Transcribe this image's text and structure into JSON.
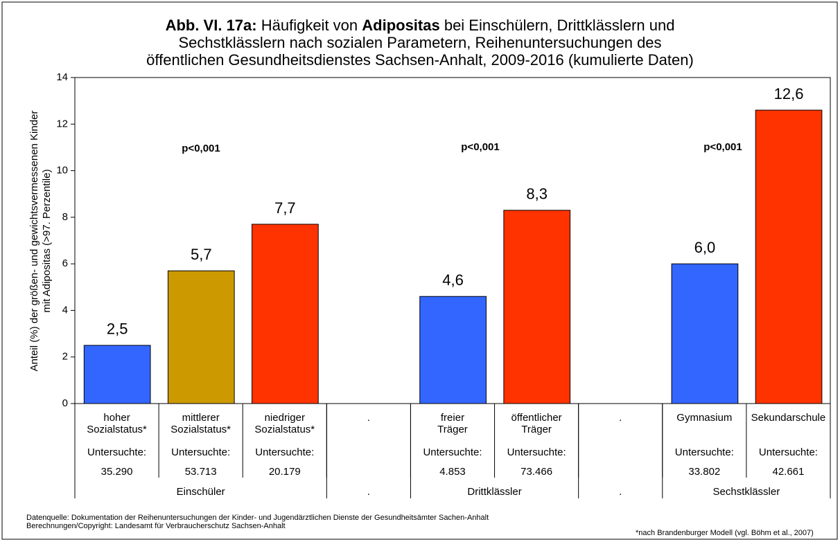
{
  "chart_data": {
    "type": "bar",
    "title": [
      "Abb. VI. 17a:",
      " Häufigkeit von ",
      "Adipositas",
      " bei Einschülern, Drittklässlern und\nSechstklässlern nach sozialen Parametern, Reihenuntersuchungen des\nöffentlichen Gesundheitsdienstes Sachsen-Anhalt, 2009-2016 (kumulierte Daten)"
    ],
    "ylabel": "Anteil (%) der größen- und gewichtsvermessenen Kinder\nmit Adipositas (>97. Perzentile)",
    "categories": [
      "hoher\nSozialstatus*",
      "mittlerer\nSozialstatus*",
      "niedriger\nSozialstatus*",
      ".",
      "freier\nTräger",
      "öffentlicher\nTräger",
      ".",
      "Gymnasium",
      "Sekundarschule"
    ],
    "values": [
      2.5,
      5.7,
      7.7,
      null,
      4.6,
      8.3,
      null,
      6.0,
      12.6
    ],
    "value_labels": [
      "2,5",
      "5,7",
      "7,7",
      null,
      "4,6",
      "8,3",
      null,
      "6,0",
      "12,6"
    ],
    "colors": [
      "#3366ff",
      "#cc9900",
      "#ff3300",
      null,
      "#3366ff",
      "#ff3300",
      null,
      "#3366ff",
      "#ff3300"
    ],
    "sample_label": "Untersuchte:",
    "sample_sizes": [
      "35.290",
      "53.713",
      "20.179",
      null,
      "4.853",
      "73.466",
      null,
      "33.802",
      "42.661"
    ],
    "groups": [
      {
        "label": "Einschüler",
        "span": 3
      },
      {
        "label": ".",
        "span": 1
      },
      {
        "label": "Drittklässler",
        "span": 2
      },
      {
        "label": ".",
        "span": 1
      },
      {
        "label": "Sechstklässler",
        "span": 2
      }
    ],
    "annotations": [
      "p<0,001",
      "p<0,001",
      "p<0,001"
    ],
    "ylim": [
      0,
      14
    ],
    "yticks": [
      0,
      2,
      4,
      6,
      8,
      10,
      12,
      14
    ],
    "source": [
      "Datenquelle: Dokumentation der Reihenuntersuchungen der Kinder- und Jugendärztlichen Dienste der Gesundheitsämter Sachen-Anhalt",
      "Berechnungen/Copyright: Landesamt für Verbraucherschutz Sachsen-Anhalt"
    ],
    "note": "*nach Brandenburger Modell (vgl. Böhm et al., 2007)"
  }
}
